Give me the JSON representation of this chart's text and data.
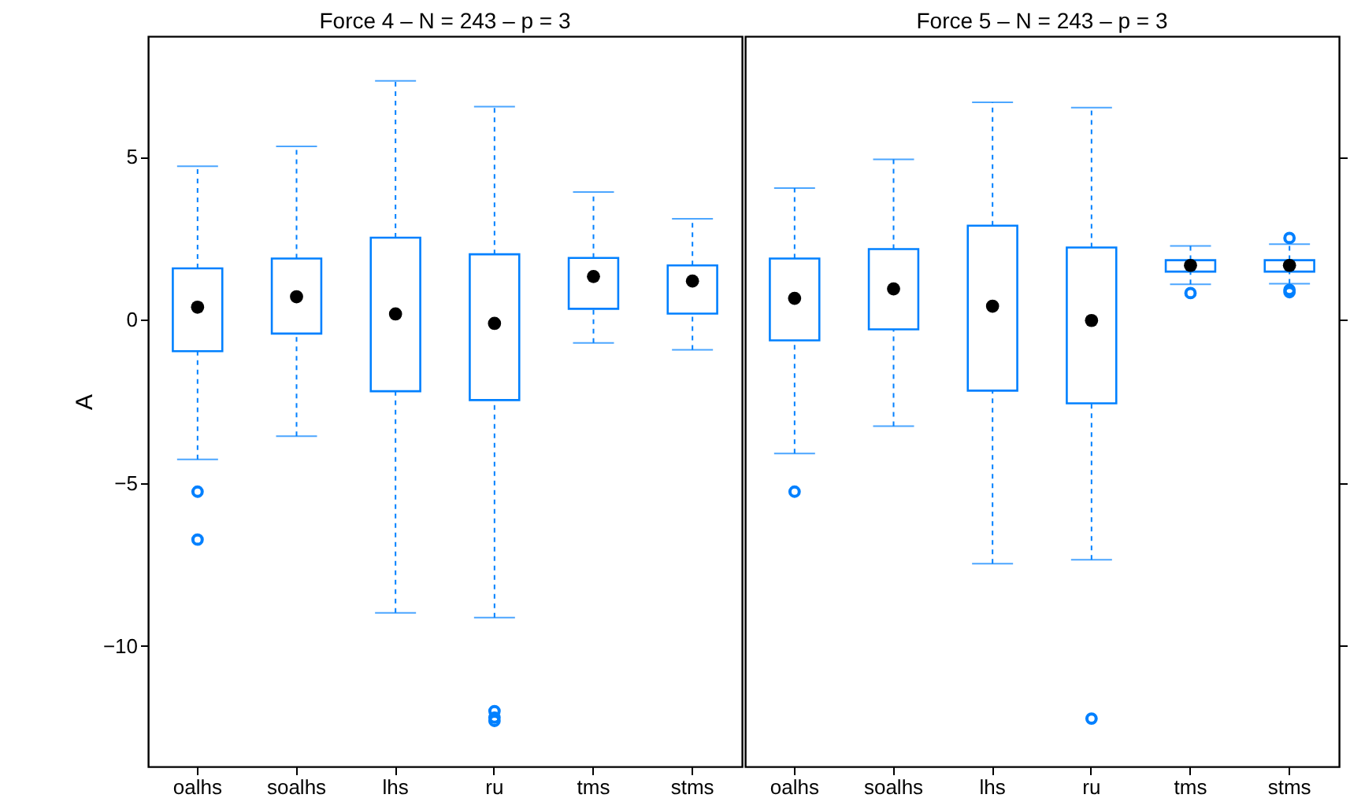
{
  "chart_data": [
    {
      "type": "box",
      "title": "Force 4  –  N = 243  –  p = 3",
      "ylabel": "A",
      "categories": [
        "oalhs",
        "soalhs",
        "lhs",
        "ru",
        "tms",
        "stms"
      ],
      "ylim": [
        -13.7,
        8.7
      ],
      "yticks": [
        -10,
        -5,
        0,
        5
      ],
      "series": [
        {
          "color": "#0080ff",
          "boxes": [
            {
              "low": -4.28,
              "q1": -0.96,
              "median": 0.39,
              "q3": 1.58,
              "high": 4.71,
              "outliers": [
                -5.27,
                -6.74
              ]
            },
            {
              "low": -3.57,
              "q1": -0.42,
              "median": 0.71,
              "q3": 1.88,
              "high": 5.32
            },
            {
              "low": -8.99,
              "q1": -2.19,
              "median": 0.18,
              "q3": 2.52,
              "high": 7.33
            },
            {
              "low": -9.13,
              "q1": -2.46,
              "median": -0.11,
              "q3": 2.01,
              "high": 6.54,
              "outliers": [
                -12.0,
                -12.2,
                -12.3
              ]
            },
            {
              "low": -0.71,
              "q1": 0.34,
              "median": 1.33,
              "q3": 1.9,
              "high": 3.92
            },
            {
              "low": -0.92,
              "q1": 0.19,
              "median": 1.19,
              "q3": 1.67,
              "high": 3.1
            }
          ]
        }
      ]
    },
    {
      "type": "box",
      "title": "Force 5  –  N = 243  –  p = 3",
      "categories": [
        "oalhs",
        "soalhs",
        "lhs",
        "ru",
        "tms",
        "stms"
      ],
      "ylim": [
        -13.7,
        8.7
      ],
      "yticks": [
        -10,
        -5,
        0,
        5
      ],
      "tick_labels": "x",
      "series": [
        {
          "color": "#0080ff",
          "boxes": [
            {
              "low": -4.1,
              "q1": -0.63,
              "median": 0.66,
              "q3": 1.88,
              "high": 4.04,
              "outliers": [
                -5.27
              ]
            },
            {
              "low": -3.26,
              "q1": -0.29,
              "median": 0.95,
              "q3": 2.17,
              "high": 4.92
            },
            {
              "low": -7.48,
              "q1": -2.17,
              "median": 0.42,
              "q3": 2.89,
              "high": 6.67
            },
            {
              "low": -7.36,
              "q1": -2.56,
              "median": -0.02,
              "q3": 2.22,
              "high": 6.51,
              "outliers": [
                -12.23
              ]
            },
            {
              "low": 1.09,
              "q1": 1.48,
              "median": 1.67,
              "q3": 1.83,
              "high": 2.27,
              "outliers": [
                0.82
              ]
            },
            {
              "low": 1.11,
              "q1": 1.48,
              "median": 1.67,
              "q3": 1.83,
              "high": 2.32,
              "outliers": [
                2.51,
                0.92,
                0.85
              ]
            }
          ]
        }
      ]
    }
  ]
}
